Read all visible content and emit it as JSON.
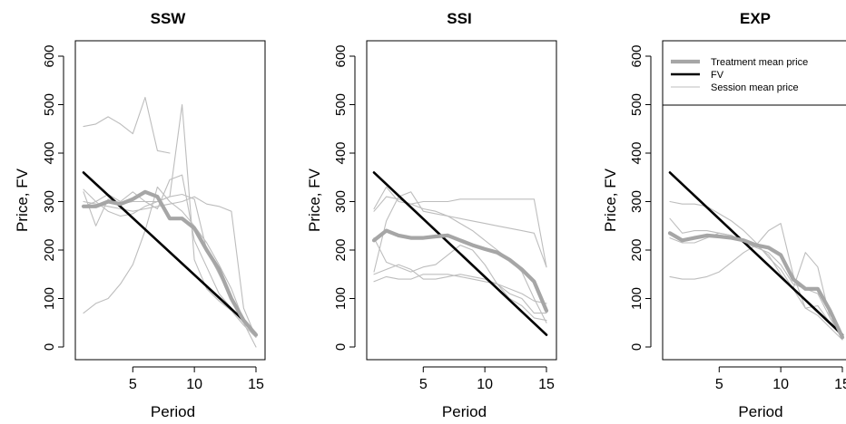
{
  "colors": {
    "background": "#ffffff",
    "axis": "#000000",
    "fv": "#000000",
    "treatment_mean": "#a6a6a6",
    "session": "#bdbdbd"
  },
  "chart_data": [
    {
      "type": "line",
      "title": "SSW",
      "xlabel": "Period",
      "ylabel": "Price, FV",
      "xlim": [
        1,
        15
      ],
      "ylim": [
        0,
        600
      ],
      "xticks": [
        5,
        10,
        15
      ],
      "yticks": [
        0,
        100,
        200,
        300,
        400,
        500,
        600
      ],
      "grid": false,
      "series": [
        {
          "role": "session",
          "x": [
            1,
            2,
            3,
            4,
            5,
            6,
            7,
            8
          ],
          "y": [
            455,
            460,
            475,
            460,
            440,
            515,
            405,
            400
          ]
        },
        {
          "role": "session",
          "x": [
            1,
            2,
            3,
            4,
            5,
            6,
            7,
            8,
            9,
            10,
            11,
            12,
            13,
            14,
            15
          ],
          "y": [
            325,
            300,
            315,
            300,
            320,
            300,
            285,
            345,
            355,
            220,
            165,
            110,
            80,
            50,
            30
          ]
        },
        {
          "role": "session",
          "x": [
            1,
            2,
            3,
            4,
            5,
            6,
            7,
            8,
            9,
            10,
            11,
            12,
            13,
            14,
            15
          ],
          "y": [
            320,
            250,
            305,
            295,
            300,
            300,
            300,
            310,
            500,
            180,
            120,
            95,
            75,
            45,
            20
          ]
        },
        {
          "role": "session",
          "x": [
            1,
            2,
            3,
            4,
            5,
            6,
            7,
            8,
            9,
            10,
            11,
            12,
            13,
            14,
            15
          ],
          "y": [
            70,
            90,
            100,
            130,
            170,
            240,
            330,
            300,
            280,
            250,
            215,
            170,
            120,
            55,
            25
          ]
        },
        {
          "role": "session",
          "x": [
            1,
            2,
            3,
            4,
            5,
            6,
            7,
            8,
            9,
            10,
            11,
            12,
            13,
            14,
            15
          ],
          "y": [
            300,
            295,
            290,
            285,
            280,
            285,
            290,
            295,
            300,
            310,
            295,
            290,
            280,
            80,
            20
          ]
        },
        {
          "role": "session",
          "x": [
            1,
            2,
            3,
            4,
            5,
            6,
            7,
            8,
            9,
            10,
            11,
            12,
            13,
            14,
            15
          ],
          "y": [
            290,
            300,
            280,
            270,
            275,
            290,
            300,
            310,
            315,
            305,
            200,
            150,
            100,
            50,
            0
          ]
        },
        {
          "role": "fv",
          "x": [
            1,
            14
          ],
          "y": [
            360,
            55
          ]
        },
        {
          "role": "treatment_mean",
          "x": [
            1,
            2,
            3,
            4,
            5,
            6,
            7,
            8,
            9,
            10,
            11,
            12,
            13,
            14,
            15
          ],
          "y": [
            290,
            290,
            300,
            295,
            305,
            320,
            310,
            265,
            265,
            245,
            200,
            160,
            100,
            55,
            25
          ]
        }
      ]
    },
    {
      "type": "line",
      "title": "SSI",
      "xlabel": "Period",
      "ylabel": "Price, FV",
      "xlim": [
        1,
        15
      ],
      "ylim": [
        0,
        600
      ],
      "xticks": [
        5,
        10,
        15
      ],
      "yticks": [
        0,
        100,
        200,
        300,
        400,
        500,
        600
      ],
      "grid": false,
      "series": [
        {
          "role": "session",
          "x": [
            1,
            2,
            3,
            4,
            5,
            6,
            7,
            8,
            9,
            10,
            11,
            12,
            13,
            14,
            15
          ],
          "y": [
            285,
            330,
            300,
            295,
            300,
            300,
            300,
            305,
            305,
            305,
            305,
            305,
            305,
            305,
            165
          ]
        },
        {
          "role": "session",
          "x": [
            1,
            2,
            3,
            4,
            5,
            6,
            7,
            8,
            9,
            10,
            11,
            12,
            13,
            14,
            15
          ],
          "y": [
            155,
            260,
            310,
            320,
            280,
            275,
            270,
            265,
            260,
            255,
            250,
            245,
            240,
            235,
            165
          ]
        },
        {
          "role": "session",
          "x": [
            1,
            2,
            3,
            4,
            5,
            6,
            7,
            8,
            9,
            10,
            11,
            12,
            13,
            14,
            15
          ],
          "y": [
            280,
            310,
            305,
            295,
            285,
            280,
            270,
            255,
            240,
            220,
            200,
            180,
            155,
            100,
            50
          ]
        },
        {
          "role": "session",
          "x": [
            1,
            2,
            3,
            4,
            5,
            6,
            7,
            8,
            9,
            10,
            11,
            12,
            13,
            14,
            15
          ],
          "y": [
            135,
            145,
            140,
            140,
            150,
            150,
            150,
            145,
            140,
            135,
            130,
            100,
            85,
            60,
            55
          ]
        },
        {
          "role": "session",
          "x": [
            1,
            2,
            3,
            4,
            5,
            6,
            7,
            8,
            9,
            10,
            11,
            12,
            13,
            14,
            15
          ],
          "y": [
            225,
            175,
            165,
            155,
            165,
            170,
            190,
            210,
            200,
            170,
            130,
            110,
            100,
            70,
            70
          ]
        },
        {
          "role": "session",
          "x": [
            1,
            2,
            3,
            4,
            5,
            6,
            7,
            8,
            9,
            10,
            11,
            12,
            13,
            14,
            15
          ],
          "y": [
            150,
            160,
            170,
            160,
            140,
            140,
            145,
            150,
            145,
            140,
            130,
            120,
            110,
            95,
            90
          ]
        },
        {
          "role": "fv",
          "x": [
            1,
            15
          ],
          "y": [
            360,
            25
          ]
        },
        {
          "role": "treatment_mean",
          "x": [
            1,
            2,
            3,
            4,
            5,
            6,
            7,
            8,
            9,
            10,
            11,
            12,
            13,
            14,
            15
          ],
          "y": [
            220,
            240,
            230,
            225,
            225,
            228,
            230,
            220,
            210,
            202,
            195,
            180,
            160,
            135,
            75
          ]
        }
      ]
    },
    {
      "type": "line",
      "title": "EXP",
      "xlabel": "Period",
      "ylabel": "Price, FV",
      "xlim": [
        1,
        15
      ],
      "ylim": [
        0,
        600
      ],
      "xticks": [
        5,
        10,
        15
      ],
      "yticks": [
        0,
        100,
        200,
        300,
        400,
        500,
        600
      ],
      "grid": false,
      "legend": {
        "placement": "top-right",
        "entries": [
          {
            "label": "Treatment mean price",
            "role": "treatment_mean"
          },
          {
            "label": "FV",
            "role": "fv"
          },
          {
            "label": "Session mean price",
            "role": "session"
          }
        ]
      },
      "series": [
        {
          "role": "session",
          "x": [
            1,
            2,
            3,
            4,
            5,
            6,
            7,
            8,
            9,
            10,
            11,
            12,
            13,
            14,
            15
          ],
          "y": [
            300,
            295,
            295,
            290,
            275,
            260,
            240,
            215,
            185,
            160,
            120,
            80,
            65,
            40,
            15
          ]
        },
        {
          "role": "session",
          "x": [
            1,
            2,
            3,
            4,
            5,
            6,
            7,
            8,
            9,
            10,
            11,
            12,
            13,
            14,
            15
          ],
          "y": [
            265,
            235,
            240,
            240,
            235,
            230,
            220,
            210,
            190,
            150,
            120,
            195,
            165,
            60,
            15
          ]
        },
        {
          "role": "session",
          "x": [
            1,
            2,
            3,
            4,
            5,
            6,
            7,
            8,
            9,
            10,
            11,
            12,
            13,
            14,
            15
          ],
          "y": [
            145,
            140,
            140,
            145,
            155,
            175,
            195,
            210,
            240,
            255,
            150,
            80,
            85,
            50,
            20
          ]
        },
        {
          "role": "session",
          "x": [
            1,
            2,
            3,
            4,
            5,
            6,
            7,
            8,
            9,
            10,
            11,
            12,
            13,
            14,
            15
          ],
          "y": [
            225,
            215,
            215,
            225,
            235,
            230,
            215,
            205,
            195,
            170,
            130,
            120,
            110,
            60,
            25
          ]
        },
        {
          "role": "fv",
          "x": [
            1,
            15
          ],
          "y": [
            360,
            25
          ]
        },
        {
          "role": "treatment_mean",
          "x": [
            1,
            2,
            3,
            4,
            5,
            6,
            7,
            8,
            9,
            10,
            11,
            12,
            13,
            14,
            15
          ],
          "y": [
            235,
            220,
            225,
            230,
            228,
            225,
            220,
            210,
            205,
            190,
            140,
            120,
            120,
            75,
            20
          ]
        }
      ]
    }
  ]
}
